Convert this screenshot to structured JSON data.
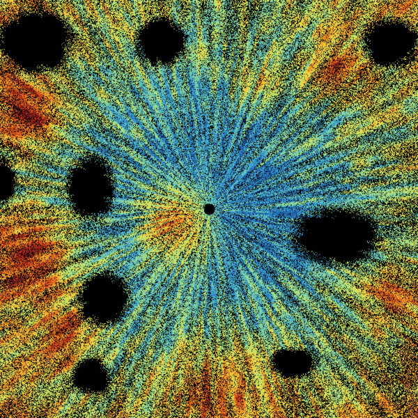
{
  "image": {
    "kind": "radar-sweep",
    "background": "#000000",
    "colormap": [
      "#1a4fa0",
      "#2a84cc",
      "#4fbcd0",
      "#9edc8a",
      "#e8ec50",
      "#f4a828",
      "#e05a18",
      "#b0241a"
    ],
    "radar_site_marker_color": "#000000"
  }
}
